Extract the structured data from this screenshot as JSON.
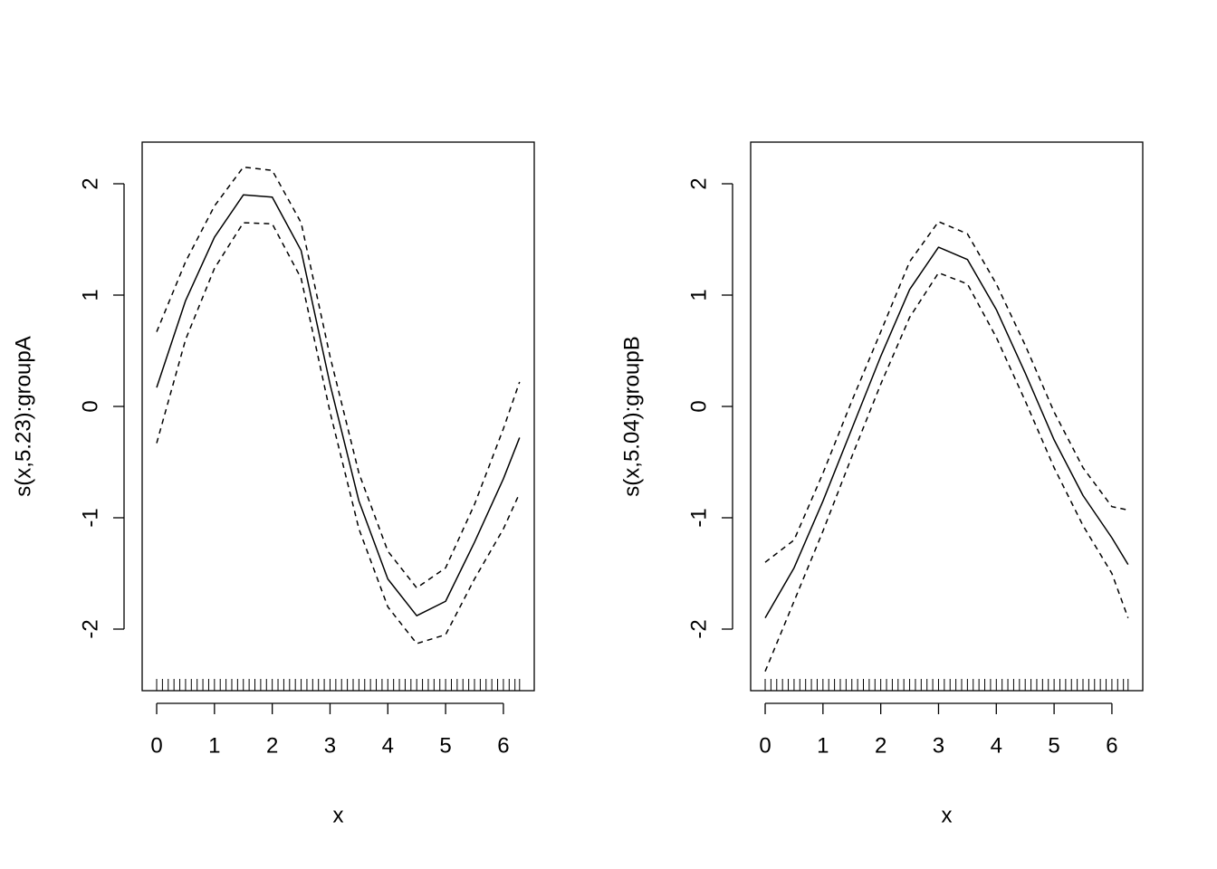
{
  "chart_data": [
    {
      "type": "line",
      "xlabel": "x",
      "ylabel": "s(x,5.23):groupA",
      "x": [
        0,
        0.5,
        1,
        1.5,
        2,
        2.5,
        3,
        3.5,
        4,
        4.5,
        5,
        5.5,
        6,
        6.28
      ],
      "series": [
        {
          "color": "#000000",
          "linestyle": "solid",
          "values": [
            0.17,
            0.95,
            1.52,
            1.9,
            1.88,
            1.4,
            0.2,
            -0.85,
            -1.55,
            -1.88,
            -1.75,
            -1.22,
            -0.65,
            -0.28
          ]
        },
        {
          "color": "#000000",
          "linestyle": "dashed",
          "values": [
            0.67,
            1.3,
            1.8,
            2.15,
            2.12,
            1.65,
            0.45,
            -0.6,
            -1.3,
            -1.63,
            -1.45,
            -0.88,
            -0.2,
            0.22
          ]
        },
        {
          "color": "#000000",
          "linestyle": "dashed",
          "values": [
            -0.33,
            0.6,
            1.24,
            1.65,
            1.64,
            1.15,
            -0.05,
            -1.1,
            -1.8,
            -2.13,
            -2.05,
            -1.55,
            -1.1,
            -0.78
          ]
        }
      ],
      "rug": [
        0,
        0.1,
        0.2,
        0.3,
        0.4,
        0.5,
        0.6,
        0.7,
        0.8,
        0.9,
        1,
        1.1,
        1.2,
        1.3,
        1.4,
        1.5,
        1.6,
        1.7,
        1.8,
        1.9,
        2,
        2.1,
        2.2,
        2.3,
        2.4,
        2.5,
        2.6,
        2.7,
        2.8,
        2.9,
        3,
        3.1,
        3.2,
        3.3,
        3.4,
        3.5,
        3.6,
        3.7,
        3.8,
        3.9,
        4,
        4.1,
        4.2,
        4.3,
        4.4,
        4.5,
        4.6,
        4.7,
        4.8,
        4.9,
        5,
        5.1,
        5.2,
        5.3,
        5.4,
        5.5,
        5.6,
        5.7,
        5.8,
        5.9,
        6,
        6.1,
        6.2,
        6.28
      ],
      "xlim": [
        -0.251,
        6.534
      ],
      "ylim": [
        -2.553,
        2.374
      ],
      "xticks": [
        0,
        1,
        2,
        3,
        4,
        5,
        6
      ],
      "yticks": [
        -2,
        -1,
        0,
        1,
        2
      ]
    },
    {
      "type": "line",
      "xlabel": "x",
      "ylabel": "s(x,5.04):groupB",
      "x": [
        0,
        0.5,
        1,
        1.5,
        2,
        2.5,
        3,
        3.5,
        4,
        4.5,
        5,
        5.5,
        6,
        6.28
      ],
      "series": [
        {
          "color": "#000000",
          "linestyle": "solid",
          "values": [
            -1.9,
            -1.45,
            -0.85,
            -0.2,
            0.45,
            1.05,
            1.43,
            1.32,
            0.87,
            0.3,
            -0.3,
            -0.8,
            -1.18,
            -1.42
          ]
        },
        {
          "color": "#000000",
          "linestyle": "dashed",
          "values": [
            -1.4,
            -1.2,
            -0.6,
            0.05,
            0.67,
            1.3,
            1.66,
            1.55,
            1.1,
            0.55,
            -0.05,
            -0.55,
            -0.9,
            -0.93
          ]
        },
        {
          "color": "#000000",
          "linestyle": "dashed",
          "values": [
            -2.38,
            -1.75,
            -1.12,
            -0.45,
            0.2,
            0.8,
            1.2,
            1.1,
            0.62,
            0.05,
            -0.55,
            -1.07,
            -1.5,
            -1.9
          ]
        }
      ],
      "rug": [
        0,
        0.1,
        0.2,
        0.3,
        0.4,
        0.5,
        0.6,
        0.7,
        0.8,
        0.9,
        1,
        1.1,
        1.2,
        1.3,
        1.4,
        1.5,
        1.6,
        1.7,
        1.8,
        1.9,
        2,
        2.1,
        2.2,
        2.3,
        2.4,
        2.5,
        2.6,
        2.7,
        2.8,
        2.9,
        3,
        3.1,
        3.2,
        3.3,
        3.4,
        3.5,
        3.6,
        3.7,
        3.8,
        3.9,
        4,
        4.1,
        4.2,
        4.3,
        4.4,
        4.5,
        4.6,
        4.7,
        4.8,
        4.9,
        5,
        5.1,
        5.2,
        5.3,
        5.4,
        5.5,
        5.6,
        5.7,
        5.8,
        5.9,
        6,
        6.1,
        6.2,
        6.28
      ],
      "xlim": [
        -0.251,
        6.534
      ],
      "ylim": [
        -2.553,
        2.374
      ],
      "xticks": [
        0,
        1,
        2,
        3,
        4,
        5,
        6
      ],
      "yticks": [
        -2,
        -1,
        0,
        1,
        2
      ]
    }
  ]
}
